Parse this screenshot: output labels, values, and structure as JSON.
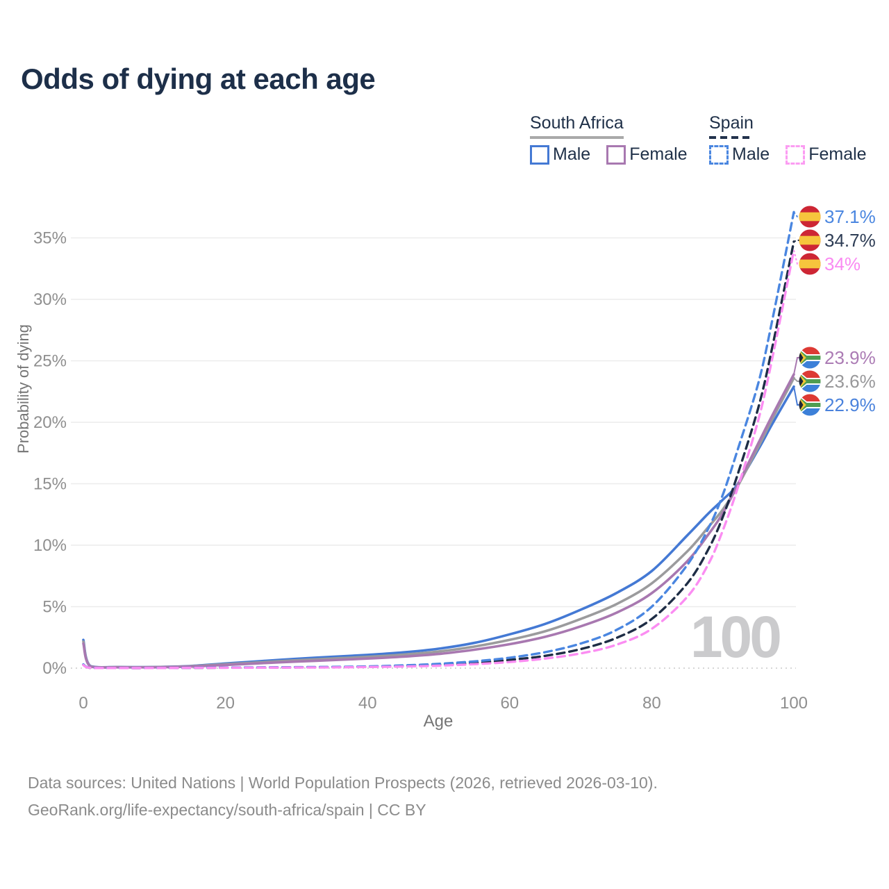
{
  "title": "Odds of dying at each age",
  "legend": {
    "groups": [
      {
        "name": "South Africa",
        "underline": "solid",
        "underline_color": "#a9a9a9",
        "items": [
          {
            "label": "Male",
            "color": "#4479d4",
            "dash": false
          },
          {
            "label": "Female",
            "color": "#a878b0",
            "dash": false
          }
        ]
      },
      {
        "name": "Spain",
        "underline": "dashed",
        "underline_color": "#22324c",
        "items": [
          {
            "label": "Male",
            "color": "#4a86e0",
            "dash": true
          },
          {
            "label": "Female",
            "color": "#fb9df2",
            "dash": true
          }
        ]
      }
    ]
  },
  "chart_data": {
    "type": "line",
    "title": "Odds of dying at each age",
    "xlabel": "Age",
    "ylabel": "Probability of dying",
    "watermark": "100",
    "x_ticks": [
      0,
      20,
      40,
      60,
      80,
      100
    ],
    "y_ticks": [
      "0%",
      "5%",
      "10%",
      "15%",
      "20%",
      "25%",
      "30%",
      "35%"
    ],
    "xlim": [
      0,
      100
    ],
    "ylim": [
      0,
      37.5
    ],
    "grid": "horizontal",
    "legend_position": "top-right",
    "ages": [
      0,
      1,
      5,
      10,
      15,
      20,
      25,
      30,
      35,
      40,
      45,
      50,
      55,
      60,
      65,
      70,
      75,
      80,
      85,
      88,
      90,
      92,
      95,
      97,
      100
    ],
    "series": [
      {
        "id": "sa_male",
        "name": "South Africa Male",
        "country": "South Africa",
        "sex": "Male",
        "color": "#4479d4",
        "dashed": false,
        "values": [
          2.3,
          0.17,
          0.09,
          0.09,
          0.17,
          0.38,
          0.57,
          0.76,
          0.92,
          1.08,
          1.28,
          1.58,
          2.05,
          2.75,
          3.6,
          4.75,
          6.1,
          7.9,
          10.8,
          12.6,
          13.7,
          14.9,
          17.8,
          19.9,
          22.9
        ]
      },
      {
        "id": "sa_total",
        "name": "South Africa Both sexes",
        "country": "South Africa",
        "sex": "Both",
        "color": "#9b9b9d",
        "dashed": false,
        "values": [
          2.15,
          0.15,
          0.08,
          0.08,
          0.15,
          0.32,
          0.48,
          0.64,
          0.78,
          0.92,
          1.1,
          1.35,
          1.75,
          2.3,
          3.0,
          4.0,
          5.2,
          6.9,
          9.5,
          11.5,
          12.9,
          14.7,
          18.0,
          20.3,
          23.6
        ]
      },
      {
        "id": "sa_female",
        "name": "South Africa Female",
        "country": "South Africa",
        "sex": "Female",
        "color": "#a878b0",
        "dashed": false,
        "values": [
          2.0,
          0.13,
          0.07,
          0.07,
          0.13,
          0.26,
          0.4,
          0.53,
          0.65,
          0.78,
          0.93,
          1.15,
          1.5,
          1.95,
          2.55,
          3.4,
          4.5,
          6.1,
          8.7,
          10.9,
          12.6,
          14.8,
          18.3,
          20.6,
          23.9
        ]
      },
      {
        "id": "es_total",
        "name": "Spain Both sexes",
        "country": "Spain",
        "sex": "Both",
        "color": "#1e2d45",
        "dashed": true,
        "values": [
          0.27,
          0.02,
          0.01,
          0.01,
          0.02,
          0.04,
          0.05,
          0.06,
          0.08,
          0.11,
          0.17,
          0.27,
          0.43,
          0.67,
          1.0,
          1.55,
          2.45,
          4.0,
          6.9,
          9.7,
          12.3,
          15.6,
          21.2,
          26.2,
          34.7
        ]
      },
      {
        "id": "es_male",
        "name": "Spain Male",
        "country": "Spain",
        "sex": "Male",
        "color": "#4a86e0",
        "dashed": true,
        "values": [
          0.3,
          0.03,
          0.01,
          0.01,
          0.03,
          0.05,
          0.06,
          0.08,
          0.1,
          0.14,
          0.22,
          0.35,
          0.55,
          0.85,
          1.3,
          2.0,
          3.1,
          5.0,
          8.4,
          11.4,
          14.1,
          17.6,
          23.2,
          28.4,
          37.1
        ]
      },
      {
        "id": "es_female",
        "name": "Spain Female",
        "country": "Spain",
        "sex": "Female",
        "color": "#fb8df2",
        "dashed": true,
        "values": [
          0.25,
          0.02,
          0.01,
          0.01,
          0.02,
          0.03,
          0.04,
          0.05,
          0.06,
          0.09,
          0.13,
          0.2,
          0.32,
          0.5,
          0.78,
          1.2,
          1.9,
          3.2,
          5.8,
          8.5,
          11.2,
          14.5,
          20.2,
          25.3,
          34.0
        ]
      }
    ],
    "end_labels": [
      {
        "series": "es_male",
        "text": "37.1%",
        "color": "#4a86e0",
        "flag": "spain"
      },
      {
        "series": "es_total",
        "text": "34.7%",
        "color": "#2e3d55",
        "flag": "spain"
      },
      {
        "series": "es_female",
        "text": "34%",
        "color": "#fa8af2",
        "flag": "spain"
      },
      {
        "series": "sa_female",
        "text": "23.9%",
        "color": "#ab7bb4",
        "flag": "south-africa"
      },
      {
        "series": "sa_total",
        "text": "23.6%",
        "color": "#98989a",
        "flag": "south-africa"
      },
      {
        "series": "sa_male",
        "text": "22.9%",
        "color": "#4a82dc",
        "flag": "south-africa"
      }
    ],
    "flag_colors": {
      "spain": {
        "red": "#cd2634",
        "yellow": "#f6c53d"
      },
      "south_africa": {
        "red": "#dd3a34",
        "blue": "#3c80d8",
        "green": "#4f9d51",
        "gold": "#f3c731",
        "black": "#202837",
        "white": "#ffffff"
      }
    }
  },
  "footer": {
    "line1": "Data sources: United Nations | World Population Prospects (2026, retrieved 2026-03-10).",
    "line2": "GeoRank.org/life-expectancy/south-africa/spain | CC BY"
  }
}
